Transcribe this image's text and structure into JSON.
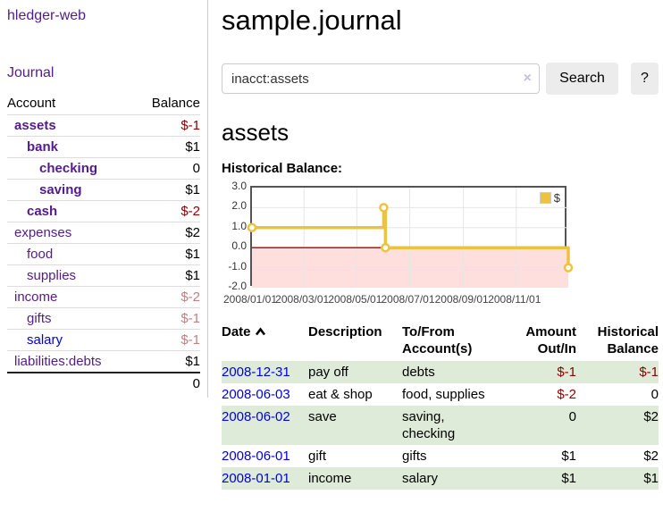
{
  "app": {
    "title": "hledger-web"
  },
  "colors": {
    "link_purple": "#551a8b",
    "link_blue": "#0000dd",
    "negative_bold": "#8b0000",
    "negative_light": "#bf7f7f",
    "row_stripe_green": "#deebd8"
  },
  "sidebar": {
    "journal_link": "Journal",
    "accounts": {
      "header_account": "Account",
      "header_balance": "Balance",
      "rows": [
        {
          "name": "assets",
          "balance": "$-1",
          "indent": 0,
          "bold": true,
          "neg": "dark",
          "blue": false
        },
        {
          "name": "bank",
          "balance": "$1",
          "indent": 1,
          "bold": true,
          "neg": "none",
          "blue": false
        },
        {
          "name": "checking",
          "balance": "0",
          "indent": 2,
          "bold": true,
          "neg": "none",
          "blue": false
        },
        {
          "name": "saving",
          "balance": "$1",
          "indent": 2,
          "bold": true,
          "neg": "none",
          "blue": false
        },
        {
          "name": "cash",
          "balance": "$-2",
          "indent": 1,
          "bold": true,
          "neg": "dark",
          "blue": false
        },
        {
          "name": "expenses",
          "balance": "$2",
          "indent": 0,
          "bold": false,
          "neg": "none",
          "blue": false
        },
        {
          "name": "food",
          "balance": "$1",
          "indent": 1,
          "bold": false,
          "neg": "none",
          "blue": false
        },
        {
          "name": "supplies",
          "balance": "$1",
          "indent": 1,
          "bold": false,
          "neg": "none",
          "blue": false
        },
        {
          "name": "income",
          "balance": "$-2",
          "indent": 0,
          "bold": false,
          "neg": "light",
          "blue": false
        },
        {
          "name": "gifts",
          "balance": "$-1",
          "indent": 1,
          "bold": false,
          "neg": "light",
          "blue": false
        },
        {
          "name": "salary",
          "balance": "$-1",
          "indent": 1,
          "bold": false,
          "neg": "light",
          "blue": true
        },
        {
          "name": "liabilities:debts",
          "balance": "$1",
          "indent": 0,
          "bold": false,
          "neg": "none",
          "blue": false
        }
      ],
      "total": "0"
    }
  },
  "main": {
    "title": "sample.journal",
    "search": {
      "value": "inacct:assets",
      "clear_icon": "×",
      "button_label": "Search",
      "help_label": "?"
    },
    "account_heading": "assets",
    "chart_heading": "Historical Balance:"
  },
  "chart_data": {
    "type": "line",
    "step": true,
    "title": "Historical Balance:",
    "x_range": [
      "2008-01-01",
      "2008-12-31"
    ],
    "ylim": [
      -2,
      3
    ],
    "y_ticks": [
      "3.0",
      "2.0",
      "1.0",
      "0.0",
      "-1.0",
      "-2.0"
    ],
    "x_ticks": [
      "2008/01/01",
      "2008/03/01",
      "2008/05/01",
      "2008/07/01",
      "2008/09/01",
      "2008/11/01"
    ],
    "series": [
      {
        "name": "$",
        "color": "#edc240",
        "point_fill": "#ffffff",
        "points": [
          [
            "2008-01-01",
            1
          ],
          [
            "2008-06-01",
            2
          ],
          [
            "2008-06-03",
            0
          ],
          [
            "2008-12-31",
            -1
          ]
        ]
      }
    ],
    "grid": true,
    "grid_color": "#e6e6e6",
    "border_color": "#545454",
    "zero_line_color": "#aa0000",
    "negative_region_color": "#ffdede",
    "legend_position": "top-right",
    "legend_label": "$"
  },
  "register_table": {
    "headers": [
      {
        "line1": "Date",
        "line2": "",
        "align": "left",
        "sorted": true
      },
      {
        "line1": "Description",
        "line2": "",
        "align": "left",
        "sorted": false
      },
      {
        "line1": "To/From",
        "line2": "Account(s)",
        "align": "left",
        "sorted": false
      },
      {
        "line1": "Amount",
        "line2": "Out/In",
        "align": "right",
        "sorted": false
      },
      {
        "line1": "Historical",
        "line2": "Balance",
        "align": "right",
        "sorted": false
      }
    ],
    "rows": [
      {
        "date": "2008-12-31",
        "description": "pay off",
        "accounts": "debts",
        "amount": "$-1",
        "balance": "$-1",
        "amount_neg": true,
        "balance_neg": true,
        "stripe": true
      },
      {
        "date": "2008-06-03",
        "description": "eat & shop",
        "accounts": "food, supplies",
        "amount": "$-2",
        "balance": "0",
        "amount_neg": true,
        "balance_neg": false,
        "stripe": false
      },
      {
        "date": "2008-06-02",
        "description": "save",
        "accounts": "saving, checking",
        "amount": "0",
        "balance": "$2",
        "amount_neg": false,
        "balance_neg": false,
        "stripe": true
      },
      {
        "date": "2008-06-01",
        "description": "gift",
        "accounts": "gifts",
        "amount": "$1",
        "balance": "$2",
        "amount_neg": false,
        "balance_neg": false,
        "stripe": false
      },
      {
        "date": "2008-01-01",
        "description": "income",
        "accounts": "salary",
        "amount": "$1",
        "balance": "$1",
        "amount_neg": false,
        "balance_neg": false,
        "stripe": true
      }
    ]
  }
}
